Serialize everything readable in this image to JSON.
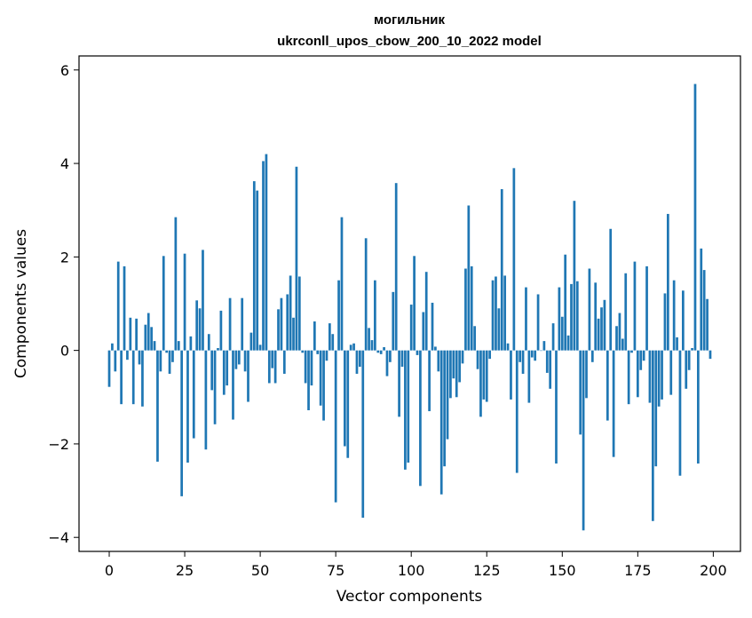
{
  "chart_data": {
    "type": "bar",
    "title": "могильник",
    "subtitle": "ukrconll_upos_cbow_200_10_2022 model",
    "xlabel": "Vector components",
    "ylabel": "Components values",
    "xlim": [
      -10,
      209
    ],
    "ylim": [
      -4.3,
      6.3
    ],
    "xticks": [
      0,
      25,
      50,
      75,
      100,
      125,
      150,
      175,
      200
    ],
    "yticks": [
      -4,
      -2,
      0,
      2,
      4,
      6
    ],
    "ytick_labels": [
      "−4",
      "−2",
      "0",
      "2",
      "4",
      "6"
    ],
    "grid": false,
    "bar_color": "#1f77b4",
    "x": [
      0,
      1,
      2,
      3,
      4,
      5,
      6,
      7,
      8,
      9,
      10,
      11,
      12,
      13,
      14,
      15,
      16,
      17,
      18,
      19,
      20,
      21,
      22,
      23,
      24,
      25,
      26,
      27,
      28,
      29,
      30,
      31,
      32,
      33,
      34,
      35,
      36,
      37,
      38,
      39,
      40,
      41,
      42,
      43,
      44,
      45,
      46,
      47,
      48,
      49,
      50,
      51,
      52,
      53,
      54,
      55,
      56,
      57,
      58,
      59,
      60,
      61,
      62,
      63,
      64,
      65,
      66,
      67,
      68,
      69,
      70,
      71,
      72,
      73,
      74,
      75,
      76,
      77,
      78,
      79,
      80,
      81,
      82,
      83,
      84,
      85,
      86,
      87,
      88,
      89,
      90,
      91,
      92,
      93,
      94,
      95,
      96,
      97,
      98,
      99,
      100,
      101,
      102,
      103,
      104,
      105,
      106,
      107,
      108,
      109,
      110,
      111,
      112,
      113,
      114,
      115,
      116,
      117,
      118,
      119,
      120,
      121,
      122,
      123,
      124,
      125,
      126,
      127,
      128,
      129,
      130,
      131,
      132,
      133,
      134,
      135,
      136,
      137,
      138,
      139,
      140,
      141,
      142,
      143,
      144,
      145,
      146,
      147,
      148,
      149,
      150,
      151,
      152,
      153,
      154,
      155,
      156,
      157,
      158,
      159,
      160,
      161,
      162,
      163,
      164,
      165,
      166,
      167,
      168,
      169,
      170,
      171,
      172,
      173,
      174,
      175,
      176,
      177,
      178,
      179,
      180,
      181,
      182,
      183,
      184,
      185,
      186,
      187,
      188,
      189,
      190,
      191,
      192,
      193,
      194,
      195,
      196,
      197,
      198,
      199
    ],
    "values": [
      -0.78,
      0.15,
      -0.45,
      1.9,
      -1.15,
      1.8,
      -0.2,
      0.7,
      -1.15,
      0.68,
      -0.3,
      -1.2,
      0.55,
      0.8,
      0.5,
      0.2,
      -2.38,
      -0.45,
      2.02,
      -0.05,
      -0.5,
      -0.25,
      2.85,
      0.2,
      -3.12,
      2.07,
      -2.4,
      0.3,
      -1.88,
      1.07,
      0.9,
      2.15,
      -2.12,
      0.35,
      -0.85,
      -1.58,
      0.05,
      0.85,
      -0.95,
      -0.75,
      1.12,
      -1.48,
      -0.4,
      -0.3,
      1.12,
      -0.45,
      -1.1,
      0.38,
      3.62,
      3.42,
      0.12,
      4.05,
      4.2,
      -0.7,
      -0.38,
      -0.7,
      0.88,
      1.12,
      -0.5,
      1.2,
      1.6,
      0.7,
      3.93,
      1.58,
      -0.05,
      -0.7,
      -1.28,
      -0.75,
      0.62,
      -0.08,
      -1.18,
      -1.5,
      -0.22,
      0.58,
      0.35,
      -3.25,
      1.5,
      2.85,
      -2.05,
      -2.3,
      0.12,
      0.15,
      -0.5,
      -0.35,
      -3.58,
      2.4,
      0.48,
      0.22,
      1.5,
      -0.05,
      -0.08,
      0.07,
      -0.55,
      -0.25,
      1.25,
      3.58,
      -1.42,
      -0.35,
      -2.55,
      -2.4,
      0.98,
      2.02,
      -0.1,
      -2.9,
      0.82,
      1.68,
      -1.3,
      1.02,
      0.08,
      -0.45,
      -3.08,
      -2.48,
      -1.9,
      -1.02,
      -0.6,
      -1.0,
      -0.68,
      -0.28,
      1.75,
      3.1,
      1.8,
      0.52,
      -0.4,
      -1.42,
      -1.05,
      -1.1,
      -0.18,
      1.5,
      1.58,
      0.9,
      3.45,
      1.6,
      0.15,
      -1.05,
      3.9,
      -2.62,
      -0.25,
      -0.5,
      1.35,
      -1.12,
      -0.15,
      -0.22,
      1.2,
      0.0,
      0.2,
      -0.48,
      -0.82,
      0.58,
      -2.42,
      1.35,
      0.72,
      2.05,
      0.32,
      1.42,
      3.2,
      1.48,
      -1.8,
      -3.85,
      -1.02,
      1.75,
      -0.25,
      1.45,
      0.68,
      0.92,
      1.08,
      -1.5,
      2.6,
      -2.28,
      0.52,
      0.8,
      0.25,
      1.65,
      -1.15,
      -0.05,
      1.9,
      -1.0,
      -0.42,
      -0.22,
      1.8,
      -1.12,
      -3.65,
      -2.48,
      -1.2,
      -1.05,
      1.22,
      2.92,
      -0.95,
      1.5,
      0.28,
      -2.68,
      1.28,
      -0.82,
      -0.42,
      0.05,
      5.7,
      -2.42,
      2.18,
      1.72,
      1.1,
      -0.18
    ]
  }
}
